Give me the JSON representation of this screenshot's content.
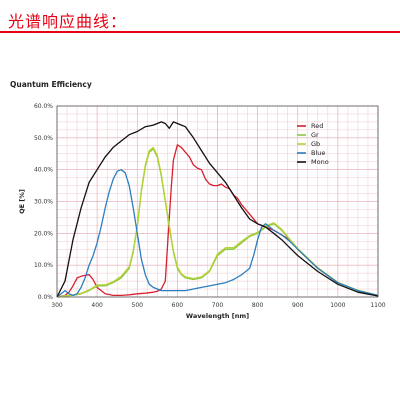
{
  "header": {
    "title": "光谱响应曲线：",
    "accent_color": "#e60012"
  },
  "chart_data": {
    "type": "line",
    "title": "Quantum Efficiency",
    "xlabel": "Wavelength [nm]",
    "ylabel": "QE [%]",
    "xlim": [
      300,
      1100
    ],
    "ylim": [
      0,
      60
    ],
    "xticks": [
      300,
      400,
      500,
      600,
      700,
      800,
      900,
      1000,
      1100
    ],
    "yticks": [
      0,
      10,
      20,
      30,
      40,
      50,
      60
    ],
    "ytick_labels": [
      "0.0%",
      "10.0%",
      "20.0%",
      "30.0%",
      "40.0%",
      "50.0%",
      "60.0%"
    ],
    "grid": true,
    "legend_position": "top-right",
    "series": [
      {
        "name": "Red",
        "color": "#d62030",
        "x": [
          300,
          320,
          330,
          340,
          350,
          360,
          370,
          380,
          390,
          400,
          420,
          440,
          460,
          480,
          500,
          520,
          540,
          550,
          560,
          570,
          575,
          580,
          585,
          590,
          600,
          610,
          620,
          630,
          640,
          650,
          660,
          670,
          680,
          690,
          700,
          710,
          720,
          730,
          740,
          750,
          760,
          780,
          800,
          820,
          840,
          860,
          880,
          900,
          950,
          1000,
          1050,
          1100
        ],
        "y": [
          0,
          0.5,
          1.5,
          3.5,
          6.0,
          6.5,
          6.8,
          7.0,
          5.5,
          3.0,
          1.0,
          0.5,
          0.5,
          0.7,
          1.0,
          1.2,
          1.5,
          1.8,
          2.5,
          5,
          15,
          25,
          35,
          43,
          47.8,
          47.0,
          45.5,
          44.0,
          41.5,
          40.5,
          40.0,
          37.0,
          35.5,
          35.0,
          35.0,
          35.5,
          34.5,
          34.0,
          32.0,
          31.0,
          29.0,
          26.0,
          23.0,
          22.0,
          21.0,
          19.5,
          18.0,
          15.0,
          9.0,
          4.5,
          2.0,
          0.5
        ]
      },
      {
        "name": "Gr",
        "color": "#8cc63f",
        "x": [
          300,
          320,
          340,
          360,
          380,
          400,
          420,
          440,
          460,
          480,
          490,
          500,
          510,
          520,
          530,
          540,
          550,
          560,
          570,
          580,
          590,
          600,
          610,
          620,
          640,
          660,
          680,
          700,
          720,
          740,
          760,
          780,
          800,
          820,
          840,
          860,
          880,
          900,
          950,
          1000,
          1050,
          1100
        ],
        "y": [
          0,
          0.3,
          0.5,
          1.0,
          2.0,
          3.5,
          3.5,
          4.5,
          6.0,
          9.0,
          14.0,
          22.0,
          33.0,
          41.0,
          45.5,
          46.5,
          44.0,
          38.0,
          30.0,
          22.0,
          14.0,
          9.0,
          7.0,
          6.0,
          5.5,
          6.0,
          8.0,
          13.0,
          15.0,
          15.0,
          17.0,
          19.0,
          20.0,
          22.0,
          23.0,
          21.0,
          18.0,
          15.0,
          9.0,
          4.5,
          2.0,
          0.5
        ]
      },
      {
        "name": "Gb",
        "color": "#b5d334",
        "x": [
          300,
          320,
          340,
          360,
          380,
          400,
          420,
          440,
          460,
          480,
          490,
          500,
          510,
          520,
          530,
          540,
          550,
          560,
          570,
          580,
          590,
          600,
          610,
          620,
          640,
          660,
          680,
          700,
          720,
          740,
          760,
          780,
          800,
          820,
          840,
          860,
          880,
          900,
          950,
          1000,
          1050,
          1100
        ],
        "y": [
          0,
          0.4,
          0.6,
          1.2,
          2.2,
          3.8,
          3.8,
          4.8,
          6.5,
          9.5,
          14.5,
          22.5,
          33.5,
          41.5,
          46.0,
          47.0,
          44.5,
          38.5,
          30.5,
          22.5,
          14.5,
          9.5,
          7.3,
          6.3,
          5.8,
          6.3,
          8.3,
          13.5,
          15.5,
          15.5,
          17.5,
          19.3,
          20.3,
          22.3,
          23.3,
          21.3,
          18.2,
          15.2,
          9.2,
          4.6,
          2.1,
          0.5
        ]
      },
      {
        "name": "Blue",
        "color": "#2b7ec2",
        "x": [
          300,
          320,
          330,
          340,
          350,
          360,
          370,
          380,
          390,
          400,
          410,
          420,
          430,
          440,
          450,
          460,
          470,
          480,
          490,
          500,
          510,
          520,
          530,
          540,
          550,
          560,
          580,
          600,
          620,
          640,
          660,
          680,
          700,
          720,
          740,
          760,
          780,
          790,
          800,
          810,
          820,
          830,
          840,
          860,
          880,
          900,
          950,
          1000,
          1050,
          1100
        ],
        "y": [
          0,
          2.0,
          1.0,
          0.5,
          1.0,
          3.0,
          6.0,
          10.0,
          13.0,
          17.0,
          22.0,
          28.0,
          33.0,
          37.0,
          39.5,
          40.0,
          39.0,
          35.0,
          28.0,
          20.0,
          12.0,
          7.0,
          4.0,
          3.0,
          2.5,
          2.0,
          2.0,
          2.0,
          2.0,
          2.5,
          3.0,
          3.5,
          4.0,
          4.5,
          5.5,
          7.0,
          9.0,
          13.0,
          18.0,
          22.0,
          23.0,
          22.0,
          21.0,
          19.5,
          17.5,
          15.0,
          9.0,
          4.5,
          2.0,
          0.5
        ]
      },
      {
        "name": "Mono",
        "color": "#111111",
        "x": [
          300,
          320,
          340,
          360,
          380,
          400,
          420,
          440,
          460,
          480,
          500,
          520,
          540,
          560,
          570,
          580,
          590,
          600,
          610,
          620,
          640,
          660,
          680,
          700,
          720,
          740,
          760,
          780,
          800,
          820,
          840,
          860,
          880,
          900,
          950,
          1000,
          1050,
          1100
        ],
        "y": [
          0,
          5.0,
          18.0,
          28.0,
          36.0,
          40.0,
          44.0,
          47.0,
          49.0,
          51.0,
          52.0,
          53.5,
          54.0,
          55.0,
          54.5,
          53.0,
          55.0,
          54.5,
          54.0,
          53.5,
          50.0,
          46.0,
          42.0,
          39.0,
          36.0,
          32.0,
          28.0,
          24.5,
          23.0,
          22.0,
          20.0,
          18.0,
          15.5,
          13.0,
          8.0,
          4.0,
          1.5,
          0.3
        ]
      }
    ]
  }
}
